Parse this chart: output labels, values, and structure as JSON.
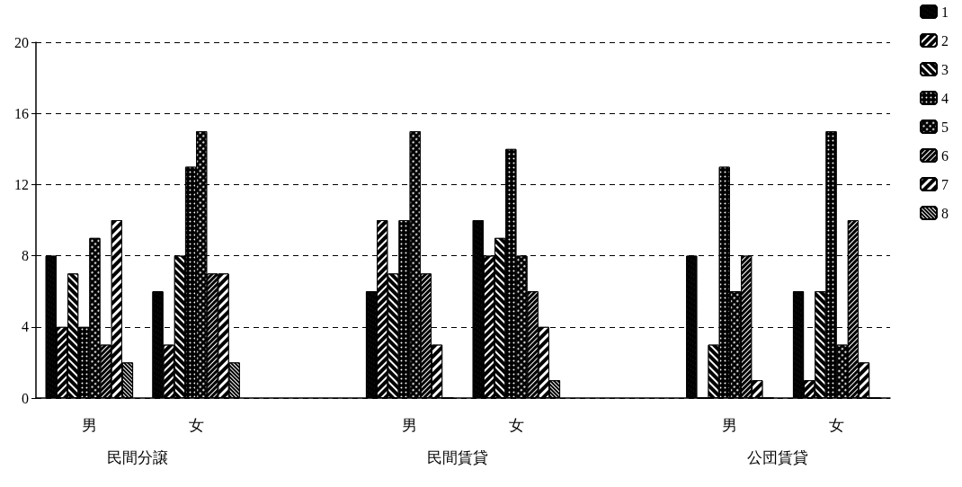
{
  "chart_data": {
    "type": "bar",
    "categories": [
      "男",
      "女",
      null,
      "男",
      "女",
      null,
      "男",
      "女"
    ],
    "series": [
      {
        "name": "1",
        "color": "#000000",
        "values": [
          8,
          6,
          null,
          6,
          10,
          null,
          8,
          6
        ]
      },
      {
        "name": "2",
        "color": "#000000",
        "values": [
          4,
          3,
          null,
          10,
          8,
          null,
          0,
          1
        ]
      },
      {
        "name": "3",
        "color": "#000000",
        "values": [
          7,
          8,
          null,
          7,
          9,
          null,
          3,
          6
        ]
      },
      {
        "name": "4",
        "color": "#000000",
        "values": [
          4,
          13,
          null,
          10,
          14,
          null,
          13,
          15
        ]
      },
      {
        "name": "5",
        "color": "#000000",
        "values": [
          9,
          15,
          null,
          15,
          8,
          null,
          6,
          3
        ]
      },
      {
        "name": "6",
        "color": "#000000",
        "values": [
          3,
          7,
          null,
          7,
          6,
          null,
          8,
          10
        ]
      },
      {
        "name": "7",
        "color": "#000000",
        "values": [
          10,
          7,
          null,
          3,
          4,
          null,
          1,
          2
        ]
      },
      {
        "name": "8",
        "color": "#000000",
        "values": [
          2,
          2,
          null,
          0,
          1,
          null,
          0,
          0
        ]
      }
    ],
    "annotations": [
      "民間分譲",
      "民間賃貸",
      "公団賃貸"
    ],
    "ylim": [
      0,
      20
    ],
    "yticks": [
      0,
      4,
      8,
      12,
      16,
      20
    ],
    "grid": "y",
    "legend": "top right"
  }
}
